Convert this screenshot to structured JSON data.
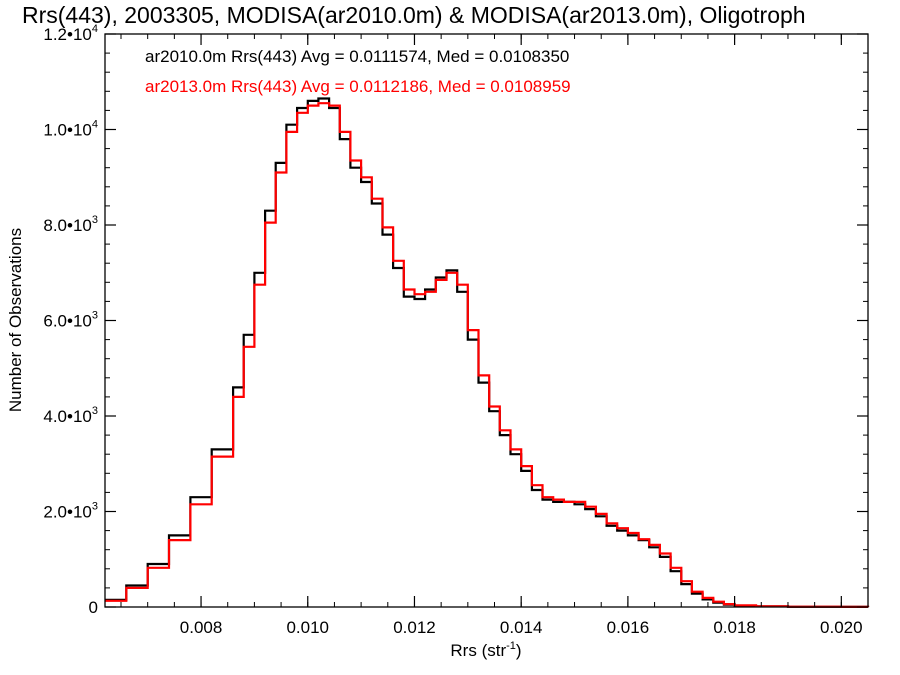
{
  "chart_data": {
    "type": "line",
    "title": "Rrs(443), 2003305, MODISA(ar2010.0m) & MODISA(ar2013.0m), Oligotroph",
    "xlabel_base": "Rrs (str",
    "xlabel_sup": "-1",
    "xlabel_close": ")",
    "ylabel": "Number of Observations",
    "xlim": [
      0.0062,
      0.0205
    ],
    "ylim": [
      0,
      12000
    ],
    "x_ticks": [
      {
        "value": 0.008,
        "label": "0.008"
      },
      {
        "value": 0.01,
        "label": "0.010"
      },
      {
        "value": 0.012,
        "label": "0.012"
      },
      {
        "value": 0.014,
        "label": "0.014"
      },
      {
        "value": 0.016,
        "label": "0.016"
      },
      {
        "value": 0.018,
        "label": "0.018"
      },
      {
        "value": 0.02,
        "label": "0.020"
      }
    ],
    "y_ticks": [
      {
        "value": 0,
        "mant": "0",
        "exp": ""
      },
      {
        "value": 2000,
        "mant": "2.0•10",
        "exp": "3"
      },
      {
        "value": 4000,
        "mant": "4.0•10",
        "exp": "3"
      },
      {
        "value": 6000,
        "mant": "6.0•10",
        "exp": "3"
      },
      {
        "value": 8000,
        "mant": "8.0•10",
        "exp": "3"
      },
      {
        "value": 10000,
        "mant": "1.0•10",
        "exp": "4"
      },
      {
        "value": 12000,
        "mant": "1.2•10",
        "exp": "4"
      }
    ],
    "series": [
      {
        "name": "ar2010.0m",
        "label": "ar2010.0m Rrs(443) Avg = 0.0111574, Med = 0.0108350",
        "color": "#000000",
        "x": [
          0.0062,
          0.0066,
          0.007,
          0.0074,
          0.0078,
          0.0082,
          0.0086,
          0.0088,
          0.009,
          0.0092,
          0.0094,
          0.0096,
          0.0098,
          0.01,
          0.0102,
          0.0104,
          0.0106,
          0.0108,
          0.011,
          0.0112,
          0.0114,
          0.0116,
          0.0118,
          0.012,
          0.0122,
          0.0124,
          0.0126,
          0.0128,
          0.013,
          0.0132,
          0.0134,
          0.0136,
          0.0138,
          0.014,
          0.0142,
          0.0144,
          0.0146,
          0.0148,
          0.015,
          0.0152,
          0.0154,
          0.0156,
          0.0158,
          0.016,
          0.0162,
          0.0164,
          0.0166,
          0.0168,
          0.017,
          0.0172,
          0.0174,
          0.0176,
          0.0178,
          0.018,
          0.0184,
          0.019,
          0.02,
          0.0205
        ],
        "y": [
          150,
          450,
          900,
          1500,
          2300,
          3300,
          4600,
          5700,
          7000,
          8300,
          9300,
          10100,
          10450,
          10600,
          10650,
          10450,
          9800,
          9200,
          8900,
          8450,
          7800,
          7100,
          6500,
          6450,
          6650,
          6900,
          7050,
          6600,
          5600,
          4700,
          4100,
          3600,
          3200,
          2850,
          2450,
          2250,
          2200,
          2200,
          2150,
          2050,
          1900,
          1700,
          1600,
          1500,
          1400,
          1250,
          1050,
          750,
          480,
          280,
          160,
          90,
          50,
          30,
          12,
          5,
          2,
          1
        ]
      },
      {
        "name": "ar2013.0m",
        "label": "ar2013.0m Rrs(443) Avg = 0.0112186, Med = 0.0108959",
        "color": "#ff0000",
        "x": [
          0.0062,
          0.0066,
          0.007,
          0.0074,
          0.0078,
          0.0082,
          0.0086,
          0.0088,
          0.009,
          0.0092,
          0.0094,
          0.0096,
          0.0098,
          0.01,
          0.0102,
          0.0104,
          0.0106,
          0.0108,
          0.011,
          0.0112,
          0.0114,
          0.0116,
          0.0118,
          0.012,
          0.0122,
          0.0124,
          0.0126,
          0.0128,
          0.013,
          0.0132,
          0.0134,
          0.0136,
          0.0138,
          0.014,
          0.0142,
          0.0144,
          0.0146,
          0.0148,
          0.015,
          0.0152,
          0.0154,
          0.0156,
          0.0158,
          0.016,
          0.0162,
          0.0164,
          0.0166,
          0.0168,
          0.017,
          0.0172,
          0.0174,
          0.0176,
          0.0178,
          0.018,
          0.0184,
          0.019,
          0.02,
          0.0205
        ],
        "y": [
          130,
          400,
          820,
          1400,
          2150,
          3150,
          4400,
          5450,
          6750,
          8050,
          9100,
          9950,
          10350,
          10500,
          10550,
          10500,
          9950,
          9350,
          9000,
          8550,
          7950,
          7250,
          6650,
          6550,
          6600,
          6850,
          7000,
          6750,
          5800,
          4850,
          4200,
          3700,
          3300,
          2950,
          2550,
          2300,
          2250,
          2200,
          2200,
          2100,
          1950,
          1750,
          1650,
          1550,
          1420,
          1300,
          1120,
          820,
          540,
          320,
          190,
          110,
          60,
          35,
          15,
          6,
          2,
          1
        ]
      }
    ]
  }
}
